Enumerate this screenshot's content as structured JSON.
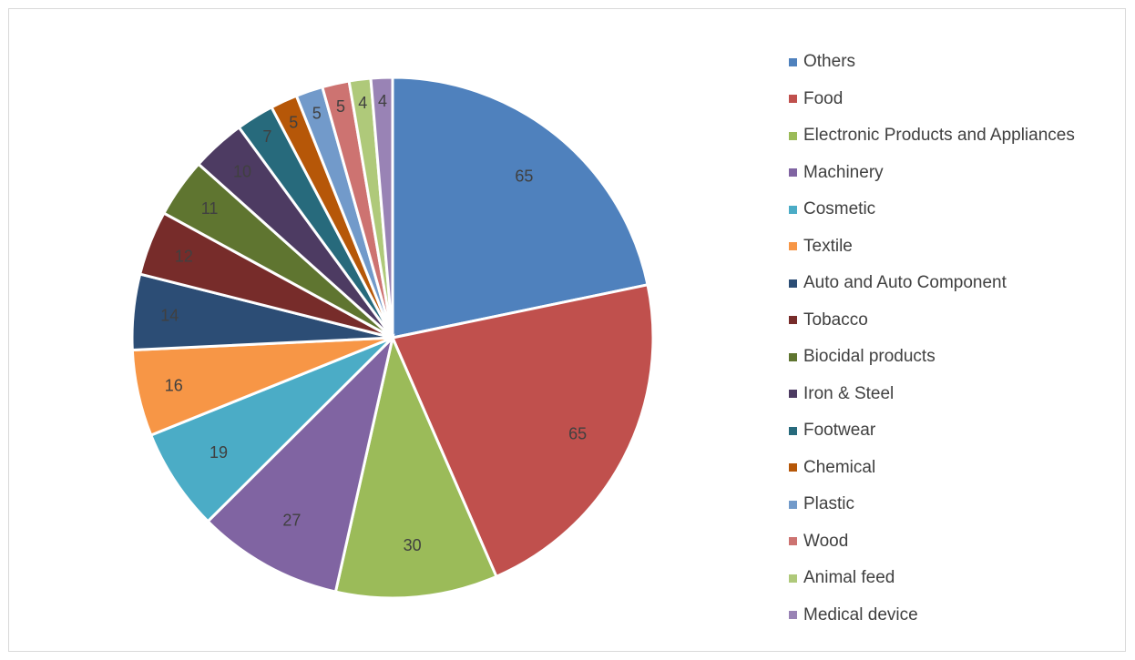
{
  "chart_data": {
    "type": "pie",
    "title": "",
    "legend_position": "right",
    "start_angle_deg": 0,
    "direction": "clockwise",
    "categories": [
      "Others",
      "Food",
      "Electronic Products and Appliances",
      "Machinery",
      "Cosmetic",
      "Textile",
      "Auto and Auto Component",
      "Tobacco",
      "Biocidal products",
      "Iron & Steel",
      "Footwear",
      "Chemical",
      "Plastic",
      "Wood",
      "Animal feed",
      "Medical device"
    ],
    "values": [
      65,
      65,
      30,
      27,
      19,
      16,
      14,
      12,
      11,
      10,
      7,
      5,
      5,
      5,
      4,
      4
    ],
    "labels": [
      "65",
      "65",
      "30",
      "27",
      "19",
      "16",
      "14",
      "12",
      "11",
      "10",
      "7",
      "5",
      "5",
      "5",
      "4",
      "4"
    ],
    "colors": [
      "#4F81BD",
      "#C0504D",
      "#9BBB59",
      "#8064A2",
      "#4BACC6",
      "#F79646",
      "#2C4D75",
      "#772C2A",
      "#5F7530",
      "#4D3B62",
      "#276A7C",
      "#B65708",
      "#729ACA",
      "#CD7371",
      "#AFC97A",
      "#9983B5"
    ]
  }
}
